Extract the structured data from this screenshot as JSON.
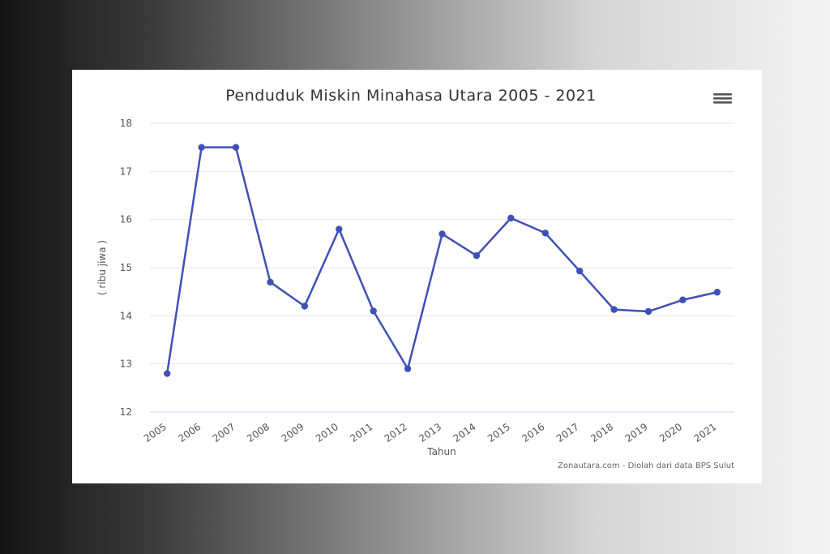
{
  "chart_data": {
    "type": "line",
    "title": "Penduduk Miskin Minahasa Utara 2005 - 2021",
    "xlabel": "Tahun",
    "ylabel": "( ribu jiwa )",
    "credits": "Zonautara.com - Diolah dari data BPS Sulut",
    "categories": [
      "2005",
      "2006",
      "2007",
      "2008",
      "2009",
      "2010",
      "2011",
      "2012",
      "2013",
      "2014",
      "2015",
      "2016",
      "2017",
      "2018",
      "2019",
      "2020",
      "2021"
    ],
    "series": [
      {
        "values": [
          12.8,
          17.5,
          17.5,
          14.7,
          14.2,
          15.8,
          14.1,
          12.9,
          15.7,
          15.25,
          16.03,
          15.72,
          14.93,
          14.13,
          14.09,
          14.33,
          14.49
        ]
      }
    ],
    "ylim": [
      12,
      18
    ],
    "yticks": [
      12,
      13,
      14,
      15,
      16,
      17,
      18
    ],
    "grid": true,
    "legend": "none",
    "colors": {
      "series": "#3f51b5"
    },
    "menu_icon": "hamburger-menu-icon"
  }
}
